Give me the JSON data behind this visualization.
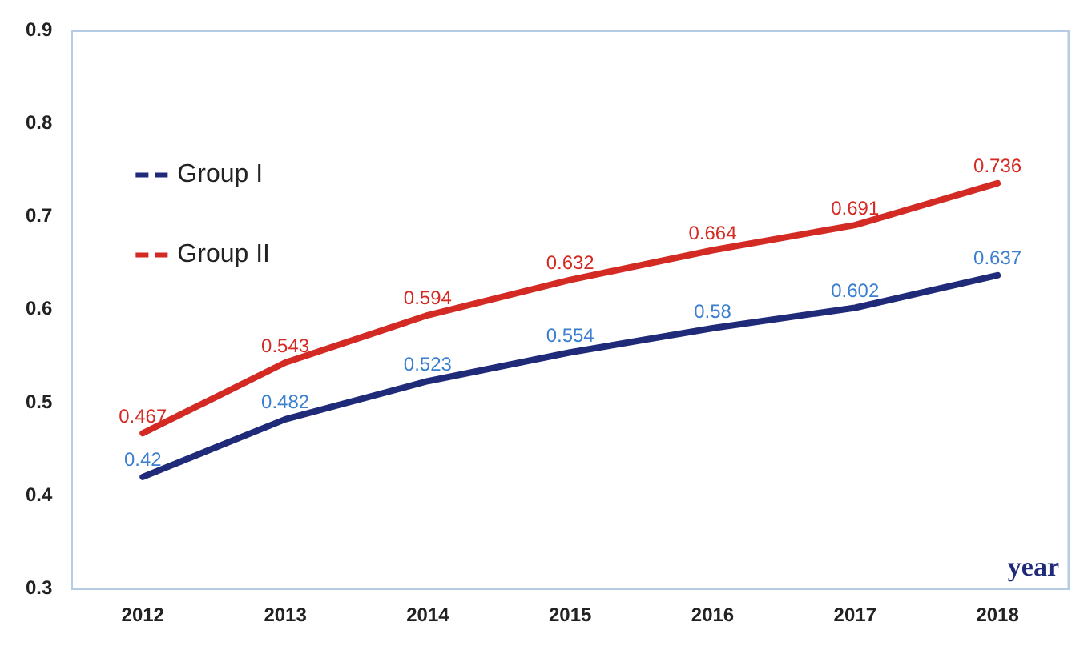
{
  "chart_data": {
    "type": "line",
    "xlabel": "year",
    "categories": [
      "2012",
      "2013",
      "2014",
      "2015",
      "2016",
      "2017",
      "2018"
    ],
    "series": [
      {
        "name": "Group I",
        "color": "#1f2a78",
        "values": [
          0.42,
          0.482,
          0.523,
          0.554,
          0.58,
          0.602,
          0.637
        ]
      },
      {
        "name": "Group II",
        "color": "#d42a24",
        "values": [
          0.467,
          0.543,
          0.594,
          0.632,
          0.664,
          0.691,
          0.736
        ]
      }
    ],
    "ylim": [
      0.3,
      0.9
    ],
    "yticks": [
      0.3,
      0.4,
      0.5,
      0.6,
      0.7,
      0.8,
      0.9
    ],
    "grid": false,
    "legend": "top left",
    "marker": "none",
    "line_style": "solid",
    "data_labels": true
  }
}
